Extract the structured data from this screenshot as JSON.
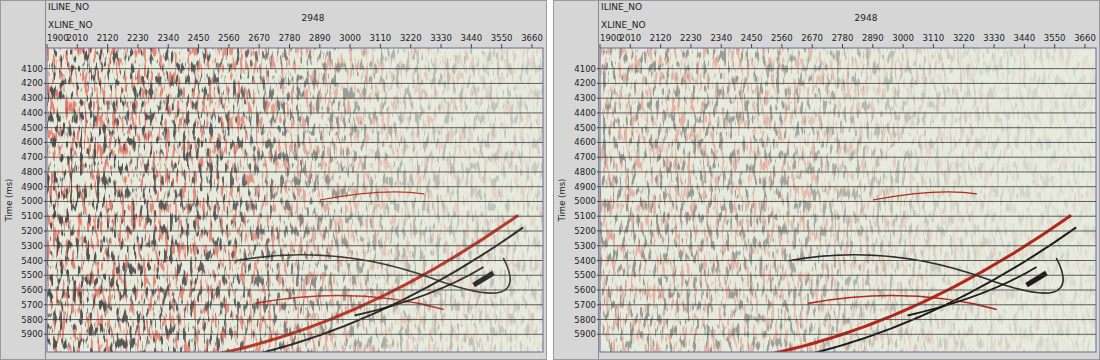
{
  "chart_data": [
    {
      "type": "seismic",
      "title": "2948",
      "inline_label": "ILINE_NO",
      "x_label": "XLINE_NO",
      "y_label": "Time (ms)",
      "xlim": [
        1900,
        3700
      ],
      "xticks": [
        1900,
        2010,
        2120,
        2230,
        2340,
        2450,
        2560,
        2670,
        2780,
        2890,
        3000,
        3110,
        3220,
        3330,
        3440,
        3550,
        3660
      ],
      "ylim": [
        3960,
        6020
      ],
      "yticks": [
        4100,
        4200,
        4300,
        4400,
        4500,
        4600,
        4700,
        4800,
        4900,
        5000,
        5100,
        5200,
        5300,
        5400,
        5500,
        5600,
        5700,
        5800,
        5900
      ],
      "grid": true
    },
    {
      "type": "seismic",
      "title": "2948",
      "inline_label": "ILINE_NO",
      "x_label": "XLINE_NO",
      "y_label": "Time (ms)",
      "xlim": [
        1900,
        3700
      ],
      "xticks": [
        1900,
        2010,
        2120,
        2230,
        2340,
        2450,
        2560,
        2670,
        2780,
        2890,
        3000,
        3110,
        3220,
        3330,
        3440,
        3550,
        3660
      ],
      "ylim": [
        3960,
        6020
      ],
      "yticks": [
        4100,
        4200,
        4300,
        4400,
        4500,
        4600,
        4700,
        4800,
        4900,
        5000,
        5100,
        5200,
        5300,
        5400,
        5500,
        5600,
        5700,
        5800,
        5900
      ],
      "grid": true
    }
  ]
}
